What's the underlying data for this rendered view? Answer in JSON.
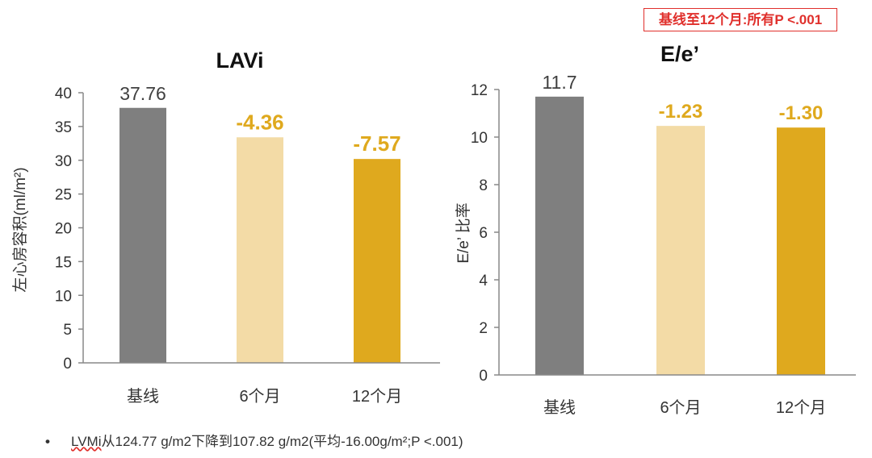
{
  "annotation": "基线至12个月:所有P <.001",
  "footnote": {
    "bullet": "•",
    "lead": "LVMi",
    "text": "从124.77 g/m2下降到107.82 g/m2(平均-16.00g/m²;P <.001)"
  },
  "colors": {
    "baseline": "#7f7f7f",
    "month6": "#f3dba6",
    "month12": "#dfa91e",
    "change_label": "#dfa91e",
    "baseline_label": "#404040",
    "axis": "#888888",
    "annotation": "#e0302c"
  },
  "chart_data": [
    {
      "type": "bar",
      "title": "LAVi",
      "ylabel": "左心房容积(ml/m²)",
      "xlabel": "",
      "categories": [
        "基线",
        "6个月",
        "12个月"
      ],
      "values": [
        37.76,
        33.4,
        30.19
      ],
      "bar_labels": [
        "37.76",
        "-4.36",
        "-7.57"
      ],
      "ylim": [
        0,
        40
      ],
      "yticks": [
        "0",
        "5",
        "10",
        "15",
        "20",
        "25",
        "30",
        "35",
        "40"
      ],
      "grid": false
    },
    {
      "type": "bar",
      "title": "E/e’",
      "ylabel": "E/e’ 比率",
      "xlabel": "",
      "categories": [
        "基线",
        "6个月",
        "12个月"
      ],
      "values": [
        11.7,
        10.47,
        10.4
      ],
      "bar_labels": [
        "11.7",
        "-1.23",
        "-1.30"
      ],
      "ylim": [
        0,
        12
      ],
      "yticks": [
        "0",
        "2",
        "4",
        "6",
        "8",
        "10",
        "12"
      ],
      "grid": false
    }
  ]
}
